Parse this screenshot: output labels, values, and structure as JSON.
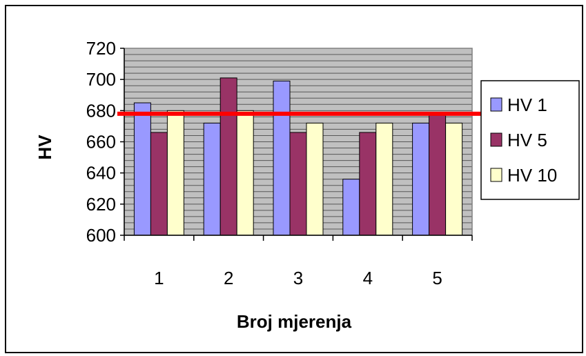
{
  "chart_data": {
    "type": "bar",
    "title": "",
    "xlabel": "Broj mjerenja",
    "ylabel": "HV",
    "categories": [
      "1",
      "2",
      "3",
      "4",
      "5"
    ],
    "ylim": [
      600,
      720
    ],
    "yticks": [
      600,
      620,
      640,
      660,
      680,
      700,
      720
    ],
    "grid": true,
    "legend_position": "right",
    "series": [
      {
        "name": "HV 1",
        "color": "#9999ff",
        "values": [
          685,
          672,
          699,
          636,
          672
        ]
      },
      {
        "name": "HV 5",
        "color": "#993366",
        "values": [
          666,
          701,
          666,
          666,
          677
        ]
      },
      {
        "name": "HV 10",
        "color": "#ffffcc",
        "values": [
          680,
          680,
          672,
          672,
          672
        ]
      }
    ],
    "reference_line": {
      "value": 678,
      "color": "#ff0000"
    },
    "plot_background": "#c0c0c0"
  }
}
